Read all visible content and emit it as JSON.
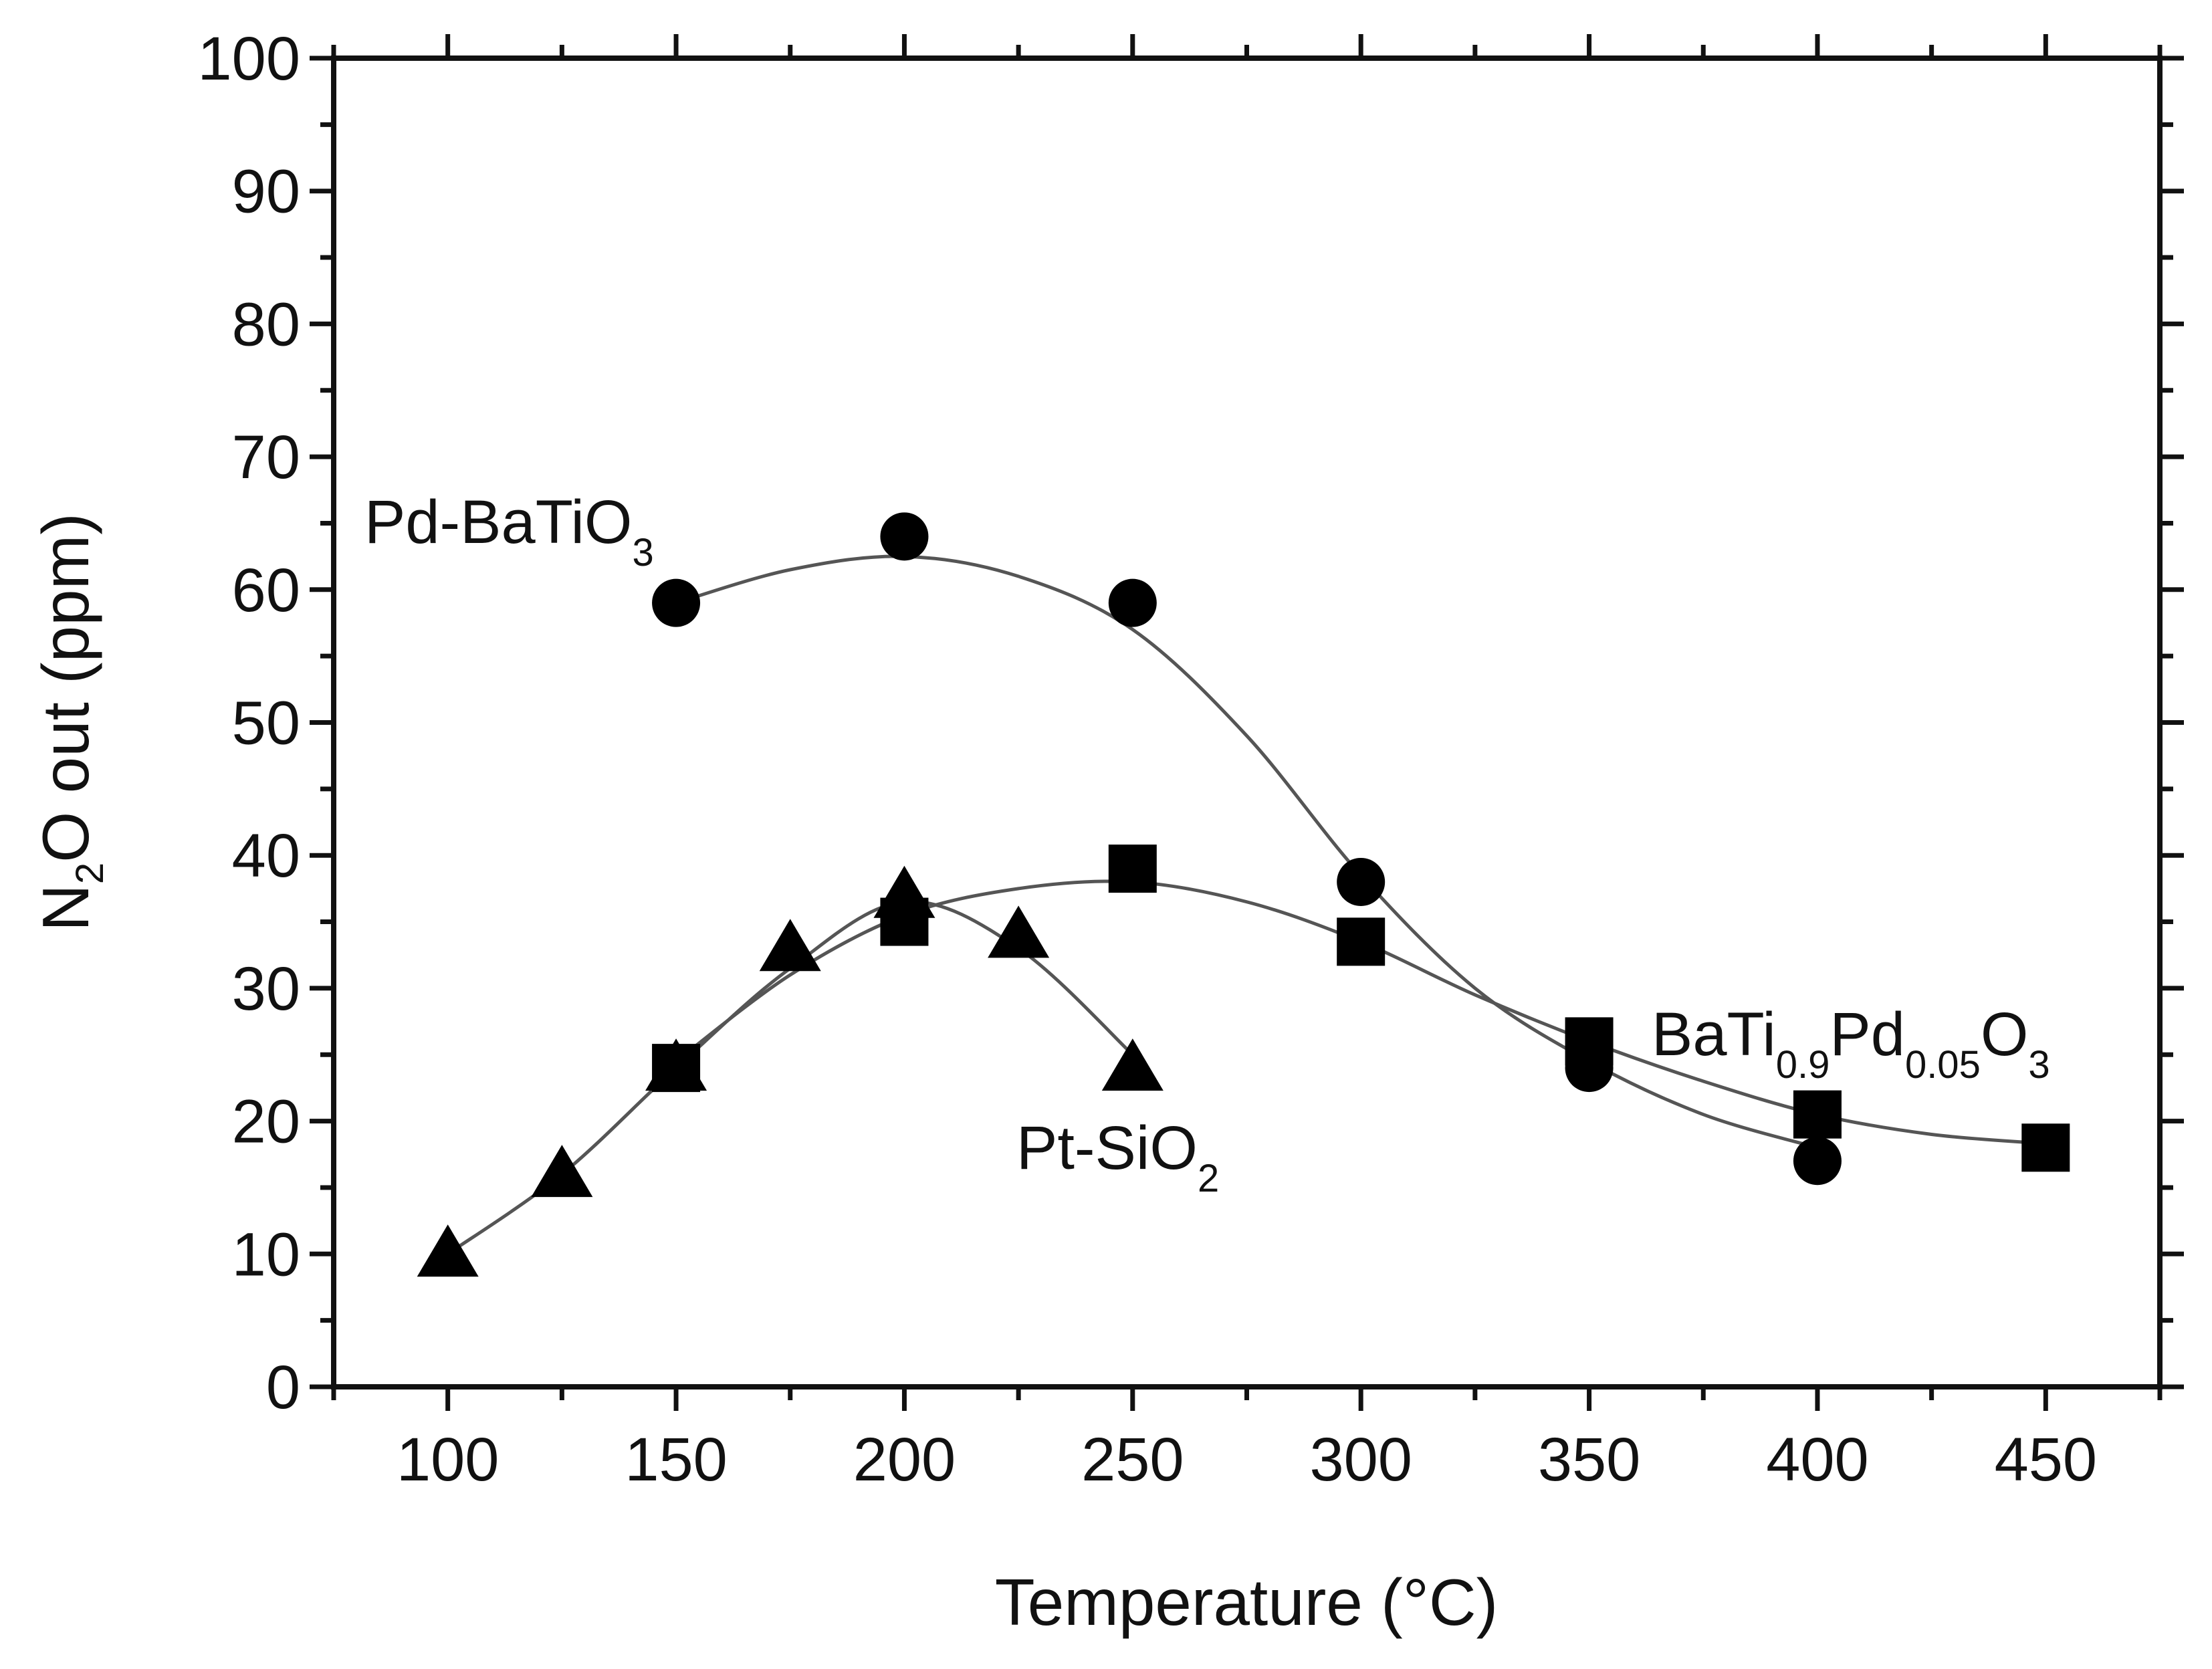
{
  "chart_data": {
    "type": "scatter",
    "title": "",
    "xlabel": "Temperature (°C)",
    "ylabel": {
      "prefix": "N",
      "sub": "2",
      "suffix": "O out (ppm)"
    },
    "xlim": [
      75,
      475
    ],
    "ylim": [
      0,
      100
    ],
    "xticks": [
      100,
      150,
      200,
      250,
      300,
      350,
      400,
      450
    ],
    "yticks": [
      0,
      10,
      20,
      30,
      40,
      50,
      60,
      70,
      80,
      90,
      100
    ],
    "grid": false,
    "series": [
      {
        "id": "pd-batio3",
        "marker": "circle",
        "label": {
          "base": "Pd-BaTiO",
          "sub": "3"
        },
        "x": [
          150,
          200,
          250,
          300,
          350,
          400
        ],
        "y": [
          59,
          64,
          59,
          38,
          24,
          17
        ],
        "fit": [
          [
            150,
            59
          ],
          [
            175,
            61.5
          ],
          [
            200,
            62.5
          ],
          [
            225,
            61
          ],
          [
            250,
            57
          ],
          [
            275,
            49
          ],
          [
            300,
            38.5
          ],
          [
            325,
            30
          ],
          [
            350,
            24.5
          ],
          [
            375,
            20.5
          ],
          [
            400,
            18
          ]
        ]
      },
      {
        "id": "pt-sio2",
        "marker": "triangle",
        "label": {
          "base": "Pt-SiO",
          "sub": "2"
        },
        "x": [
          100,
          125,
          150,
          175,
          200,
          225,
          250
        ],
        "y": [
          10,
          16,
          24,
          33,
          37,
          34,
          24
        ],
        "fit": [
          [
            100,
            10
          ],
          [
            125,
            16
          ],
          [
            150,
            24
          ],
          [
            175,
            31.5
          ],
          [
            200,
            36.5
          ],
          [
            225,
            33
          ],
          [
            250,
            25
          ]
        ]
      },
      {
        "id": "batipdo3",
        "marker": "square",
        "label": {
          "parts": [
            "BaTi",
            "0.9",
            "Pd",
            "0.05",
            "O",
            "3"
          ]
        },
        "x": [
          150,
          200,
          250,
          300,
          350,
          400,
          450
        ],
        "y": [
          24,
          35,
          39,
          33.5,
          26,
          20.5,
          18
        ],
        "fit": [
          [
            150,
            24.5
          ],
          [
            175,
            31
          ],
          [
            200,
            35.5
          ],
          [
            225,
            37.5
          ],
          [
            250,
            38
          ],
          [
            275,
            36.5
          ],
          [
            300,
            33.5
          ],
          [
            325,
            29.5
          ],
          [
            350,
            26
          ],
          [
            375,
            23
          ],
          [
            400,
            20.5
          ],
          [
            425,
            19
          ],
          [
            450,
            18.3
          ]
        ]
      }
    ]
  }
}
